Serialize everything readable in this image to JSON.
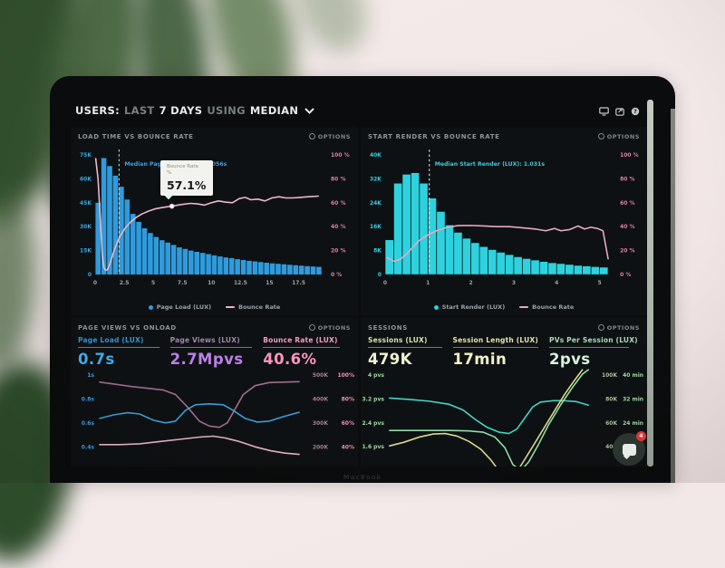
{
  "laptop": {
    "brand_label": "MacBook"
  },
  "ui": {
    "options_label": "OPTIONS"
  },
  "header": {
    "users_label": "USERS:",
    "last_label": "LAST",
    "days_label": "7 DAYS",
    "using_label": "USING",
    "median_label": "MEDIAN"
  },
  "chat_widget": {
    "badge": "4"
  },
  "colors": {
    "bar_blue": "#2f9bdc",
    "bar_cyan": "#2ed2de",
    "bounce_pink": "#ecb6c9",
    "metric_blue": "#3fb0ec",
    "metric_purple": "#bb80e8",
    "metric_pink": "#f795bd",
    "metric_pale_yellow": "#eef3d2",
    "metric_pale_green": "#d8f2e2"
  },
  "chart_data": [
    {
      "id": "chart0",
      "type": "bar",
      "title": "LOAD TIME VS BOUNCE RATE",
      "x_range": [
        0,
        19.8
      ],
      "y_left_max": 75000,
      "y_left_ticks": [
        "75K",
        "60K",
        "45K",
        "30K",
        "15K",
        "0"
      ],
      "y_right_ticks": [
        "100 %",
        "80 %",
        "60 %",
        "40 %",
        "20 %",
        "0 %"
      ],
      "x_ticks": [
        {
          "v": 0,
          "label": "0"
        },
        {
          "v": 2.5,
          "label": "2.5"
        },
        {
          "v": 5,
          "label": "5"
        },
        {
          "v": 7.5,
          "label": "7.5"
        },
        {
          "v": 10,
          "label": "10"
        },
        {
          "v": 12.5,
          "label": "12.5"
        },
        {
          "v": 15,
          "label": "15"
        },
        {
          "v": 17.5,
          "label": "17.5"
        }
      ],
      "left_axis_color": "#39a5e4",
      "right_axis_color": "#dd7fa4",
      "x_axis_color": "#9aa1a3",
      "bar_color": "#2f9bdc",
      "line_color": "#ecb6c9",
      "median_color": "#3f9ee8",
      "median_line_color": "#b8d4e8",
      "bars": {
        "x_start": 0.25,
        "x_step": 0.5,
        "values_k": [
          45,
          73,
          68,
          62,
          55,
          47,
          38,
          33,
          29,
          26,
          23.5,
          21.5,
          20,
          18.5,
          17,
          16,
          15,
          14.2,
          13.5,
          12.8,
          12,
          11.3,
          10.7,
          10.2,
          9.6,
          9.1,
          8.6,
          8.2,
          7.8,
          7.4,
          7,
          6.7,
          6.4,
          6.1,
          5.8,
          5.5,
          5.2,
          5,
          4.8
        ]
      },
      "line_pct": [
        [
          0.05,
          97
        ],
        [
          0.25,
          80
        ],
        [
          0.45,
          45
        ],
        [
          0.6,
          18
        ],
        [
          0.75,
          6
        ],
        [
          0.9,
          3.5
        ],
        [
          1.05,
          4
        ],
        [
          1.2,
          7
        ],
        [
          1.4,
          13
        ],
        [
          1.6,
          19
        ],
        [
          1.9,
          27
        ],
        [
          2.2,
          33
        ],
        [
          2.6,
          39
        ],
        [
          3.0,
          43.5
        ],
        [
          3.5,
          47.5
        ],
        [
          4.0,
          50.5
        ],
        [
          4.6,
          53
        ],
        [
          5.2,
          55
        ],
        [
          5.9,
          56.2
        ],
        [
          6.6,
          57.1
        ],
        [
          7.4,
          58.5
        ],
        [
          8.2,
          59.5
        ],
        [
          8.8,
          59
        ],
        [
          9.4,
          58
        ],
        [
          10.0,
          60
        ],
        [
          10.6,
          61.5
        ],
        [
          11.2,
          60.5
        ],
        [
          11.8,
          60
        ],
        [
          12.4,
          63.5
        ],
        [
          12.9,
          64.5
        ],
        [
          13.4,
          62.5
        ],
        [
          14.0,
          63
        ],
        [
          14.6,
          61.5
        ],
        [
          15.2,
          64
        ],
        [
          15.8,
          65
        ],
        [
          16.4,
          64
        ],
        [
          17.0,
          64
        ],
        [
          17.6,
          64.5
        ],
        [
          18.3,
          65
        ],
        [
          19.2,
          65.5
        ]
      ],
      "marker": [
        6.6,
        57.1
      ],
      "median": {
        "x": 2.056,
        "label": "Median Page Load (LUX): 2.056s"
      },
      "tooltip": {
        "title": "Bounce Rate",
        "unit": "%",
        "value": "57.1%"
      },
      "legend": [
        {
          "swatch": "dot",
          "color": "#2f9bdc",
          "label": "Page Load (LUX)"
        },
        {
          "swatch": "line",
          "color": "#ecb6c9",
          "label": "Bounce Rate"
        }
      ]
    },
    {
      "id": "chart1",
      "type": "bar",
      "title": "START RENDER VS BOUNCE RATE",
      "x_range": [
        0,
        5.35
      ],
      "y_left_max": 40000,
      "y_left_ticks": [
        "40K",
        "32K",
        "24K",
        "16K",
        "8K",
        "0"
      ],
      "y_right_ticks": [
        "100 %",
        "80 %",
        "60 %",
        "40 %",
        "20 %",
        "0 %"
      ],
      "x_ticks": [
        {
          "v": 0,
          "label": "0"
        },
        {
          "v": 1,
          "label": "1"
        },
        {
          "v": 2,
          "label": "2"
        },
        {
          "v": 3,
          "label": "3"
        },
        {
          "v": 4,
          "label": "4"
        },
        {
          "v": 5,
          "label": "5"
        }
      ],
      "left_axis_color": "#37cede",
      "right_axis_color": "#dd7fa4",
      "x_axis_color": "#9aa1a3",
      "bar_color": "#2ed2de",
      "line_color": "#e8a9c0",
      "median_color": "#41c9d9",
      "median_line_color": "#d8e4e4",
      "bars": {
        "x_start": 0.1,
        "x_step": 0.2,
        "values_k": [
          11.5,
          30.5,
          33.5,
          34,
          30.5,
          25.5,
          21,
          16.5,
          14,
          12,
          10.5,
          9.2,
          8.2,
          7.3,
          6.5,
          5.8,
          5.2,
          4.7,
          4.2,
          3.8,
          3.5,
          3.2,
          2.9,
          2.7,
          2.5,
          2.3
        ]
      },
      "line_pct": [
        [
          0.05,
          14
        ],
        [
          0.2,
          11
        ],
        [
          0.35,
          12.5
        ],
        [
          0.5,
          17
        ],
        [
          0.65,
          23
        ],
        [
          0.8,
          28.5
        ],
        [
          1.0,
          33
        ],
        [
          1.2,
          36.5
        ],
        [
          1.45,
          39.5
        ],
        [
          1.7,
          40.8
        ],
        [
          2.0,
          41
        ],
        [
          2.3,
          40.5
        ],
        [
          2.6,
          40
        ],
        [
          2.9,
          40
        ],
        [
          3.2,
          39
        ],
        [
          3.5,
          38
        ],
        [
          3.75,
          36.5
        ],
        [
          3.95,
          38.5
        ],
        [
          4.1,
          36.5
        ],
        [
          4.3,
          37.5
        ],
        [
          4.5,
          40.5
        ],
        [
          4.65,
          38
        ],
        [
          4.8,
          39.5
        ],
        [
          4.95,
          38.5
        ],
        [
          5.08,
          36.5
        ],
        [
          5.2,
          13
        ]
      ],
      "median": {
        "x": 1.031,
        "label": "Median Start Render (LUX): 1.031s"
      },
      "legend": [
        {
          "swatch": "dot",
          "color": "#2ed2de",
          "label": "Start Render (LUX)"
        },
        {
          "swatch": "line",
          "color": "#e8a9c0",
          "label": "Bounce Rate"
        }
      ]
    },
    {
      "id": "chart2",
      "type": "line",
      "title": "PAGE VIEWS VS ONLOAD",
      "metrics": [
        {
          "label": "Page Load (LUX)",
          "value": "0.7s",
          "label_color": "#2f95d6",
          "value_color": "#3fb0ec"
        },
        {
          "label": "Page Views (LUX)",
          "value": "2.7Mpvs",
          "label_color": "#9b86ad",
          "value_color": "#bb80e8"
        },
        {
          "label": "Bounce Rate (LUX)",
          "value": "40.6%",
          "label_color": "#f49ac4",
          "value_color": "#f795bd"
        }
      ],
      "left_ticks": [
        "1s",
        "0.8s",
        "0.6s",
        "0.4s"
      ],
      "right_ticks": [
        [
          "500K",
          "100%"
        ],
        [
          "400K",
          "80%"
        ],
        [
          "300K",
          "60%"
        ],
        [
          "200K",
          "40%"
        ]
      ],
      "left_axis_color": "#3aa0dd",
      "right_col1_color": "#a87f92",
      "right_col2_color": "#ef8fb5",
      "series": [
        {
          "name": "Page Views",
          "color": "#a06d90",
          "points": [
            [
              0,
              0.88
            ],
            [
              0.08,
              0.855
            ],
            [
              0.16,
              0.83
            ],
            [
              0.24,
              0.81
            ],
            [
              0.32,
              0.79
            ],
            [
              0.38,
              0.74
            ],
            [
              0.44,
              0.6
            ],
            [
              0.5,
              0.44
            ],
            [
              0.55,
              0.385
            ],
            [
              0.6,
              0.37
            ],
            [
              0.64,
              0.42
            ],
            [
              0.68,
              0.58
            ],
            [
              0.72,
              0.74
            ],
            [
              0.78,
              0.84
            ],
            [
              0.85,
              0.875
            ],
            [
              1,
              0.885
            ]
          ]
        },
        {
          "name": "Page Load",
          "color": "#3f9fd9",
          "points": [
            [
              0,
              0.47
            ],
            [
              0.07,
              0.51
            ],
            [
              0.14,
              0.535
            ],
            [
              0.2,
              0.52
            ],
            [
              0.27,
              0.45
            ],
            [
              0.33,
              0.42
            ],
            [
              0.38,
              0.44
            ],
            [
              0.43,
              0.56
            ],
            [
              0.48,
              0.625
            ],
            [
              0.55,
              0.635
            ],
            [
              0.62,
              0.625
            ],
            [
              0.67,
              0.56
            ],
            [
              0.73,
              0.47
            ],
            [
              0.79,
              0.43
            ],
            [
              0.85,
              0.44
            ],
            [
              0.92,
              0.49
            ],
            [
              1,
              0.54
            ]
          ]
        },
        {
          "name": "Bounce Rate",
          "color": "#e8b3c6",
          "points": [
            [
              0,
              0.175
            ],
            [
              0.1,
              0.175
            ],
            [
              0.2,
              0.185
            ],
            [
              0.3,
              0.21
            ],
            [
              0.4,
              0.235
            ],
            [
              0.5,
              0.26
            ],
            [
              0.57,
              0.27
            ],
            [
              0.63,
              0.25
            ],
            [
              0.7,
              0.21
            ],
            [
              0.78,
              0.15
            ],
            [
              0.86,
              0.105
            ],
            [
              0.93,
              0.08
            ],
            [
              1,
              0.065
            ]
          ]
        }
      ]
    },
    {
      "id": "chart3",
      "type": "line",
      "title": "SESSIONS",
      "metrics": [
        {
          "label": "Sessions (LUX)",
          "value": "479K",
          "label_color": "#d7e3a8",
          "value_color": "#eef3d2"
        },
        {
          "label": "Session Length (LUX)",
          "value": "17min",
          "label_color": "#e3e3a8",
          "value_color": "#f2f2c8"
        },
        {
          "label": "PVs Per Session (LUX)",
          "value": "2pvs",
          "label_color": "#a8d8b8",
          "value_color": "#d8f2e2"
        }
      ],
      "left_ticks": [
        "4 pvs",
        "3.2 pvs",
        "2.4 pvs",
        "1.6 pvs"
      ],
      "right_ticks": [
        [
          "100K",
          "40 min"
        ],
        [
          "80K",
          "32 min"
        ],
        [
          "60K",
          "24 min"
        ],
        [
          "40K",
          ""
        ]
      ],
      "left_axis_color": "#9fd9a8",
      "right_col1_color": "#aebf9a",
      "right_col2_color": "#9fd9a8",
      "series": [
        {
          "name": "Sessions",
          "color": "#45d6c2",
          "points": [
            [
              0,
              0.7
            ],
            [
              0.1,
              0.685
            ],
            [
              0.2,
              0.665
            ],
            [
              0.3,
              0.63
            ],
            [
              0.37,
              0.565
            ],
            [
              0.43,
              0.46
            ],
            [
              0.49,
              0.37
            ],
            [
              0.55,
              0.315
            ],
            [
              0.6,
              0.3
            ],
            [
              0.64,
              0.35
            ],
            [
              0.68,
              0.475
            ],
            [
              0.72,
              0.6
            ],
            [
              0.76,
              0.655
            ],
            [
              0.82,
              0.67
            ],
            [
              0.88,
              0.67
            ],
            [
              0.94,
              0.66
            ],
            [
              1,
              0.62
            ]
          ]
        },
        {
          "name": "PVs Per Session",
          "color": "#93e0a8",
          "points": [
            [
              0,
              0.335
            ],
            [
              0.15,
              0.335
            ],
            [
              0.3,
              0.335
            ],
            [
              0.4,
              0.33
            ],
            [
              0.47,
              0.315
            ],
            [
              0.53,
              0.26
            ],
            [
              0.58,
              0.14
            ],
            [
              0.62,
              -0.05
            ],
            [
              0.66,
              -0.12
            ],
            [
              0.7,
              -0.02
            ],
            [
              0.75,
              0.18
            ],
            [
              0.8,
              0.4
            ],
            [
              0.86,
              0.62
            ],
            [
              0.92,
              0.82
            ],
            [
              0.97,
              0.97
            ],
            [
              1,
              1.02
            ]
          ]
        },
        {
          "name": "Session Length",
          "color": "#ddd98e",
          "points": [
            [
              0,
              0.16
            ],
            [
              0.07,
              0.2
            ],
            [
              0.15,
              0.26
            ],
            [
              0.22,
              0.295
            ],
            [
              0.28,
              0.3
            ],
            [
              0.34,
              0.27
            ],
            [
              0.4,
              0.21
            ],
            [
              0.46,
              0.12
            ],
            [
              0.51,
              0.0
            ],
            [
              0.55,
              -0.12
            ],
            [
              0.6,
              -0.18
            ],
            [
              0.65,
              -0.1
            ],
            [
              0.7,
              0.08
            ],
            [
              0.76,
              0.3
            ],
            [
              0.82,
              0.52
            ],
            [
              0.88,
              0.74
            ],
            [
              0.93,
              0.9
            ],
            [
              0.97,
              1.02
            ]
          ]
        }
      ]
    }
  ]
}
